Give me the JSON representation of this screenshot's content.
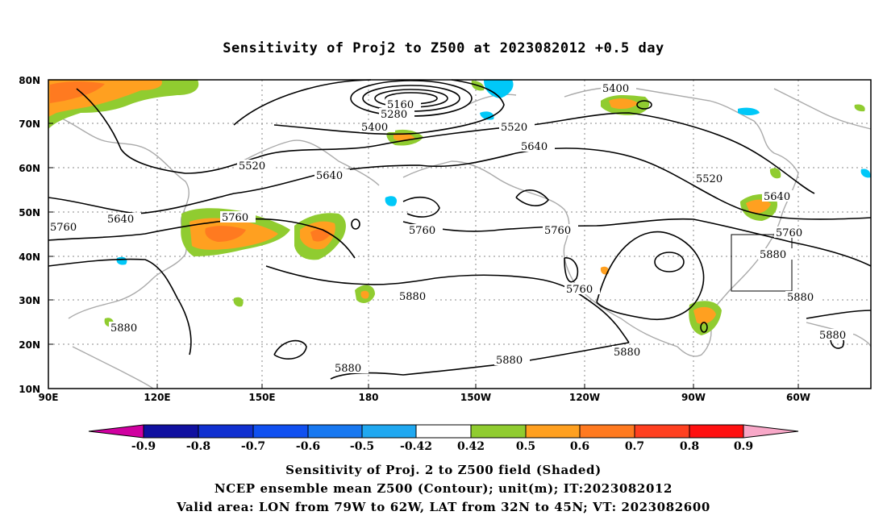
{
  "title": "Sensitivity of Proj2 to Z500 at 2023082012 +0.5 day",
  "lat_labels": [
    "80N",
    "70N",
    "60N",
    "50N",
    "40N",
    "30N",
    "20N",
    "10N"
  ],
  "lon_labels": [
    "90E",
    "120E",
    "150E",
    "180",
    "150W",
    "120W",
    "90W",
    "60W"
  ],
  "contour_labels": [
    "5160",
    "5280",
    "5400",
    "5400",
    "5520",
    "5520",
    "5520",
    "5640",
    "5640",
    "5640",
    "5640",
    "5760",
    "5760",
    "5760",
    "5760",
    "5760",
    "5760",
    "5880",
    "5880",
    "5880",
    "5880",
    "5880",
    "5880",
    "5880",
    "5880"
  ],
  "colorbar": {
    "labels": [
      "-0.9",
      "-0.8",
      "-0.7",
      "-0.6",
      "-0.5",
      "-0.42",
      "0.42",
      "0.5",
      "0.6",
      "0.7",
      "0.8",
      "0.9"
    ],
    "colors": [
      "#d000a0",
      "#1010a0",
      "#1030d0",
      "#1050f0",
      "#1878f0",
      "#20a8f0",
      "#00c8f8",
      "#ffffff",
      "#90cc30",
      "#ffa020",
      "#ff7a20",
      "#ff4020",
      "#ff1010",
      "#f8a8c8"
    ]
  },
  "footer": {
    "line1": "Sensitivity of Proj. 2 to Z500 field (Shaded)",
    "line2": "NCEP ensemble mean Z500 (Contour); unit(m); IT:2023082012",
    "line3": "Valid area: LON from 79W to 62W, LAT from 32N to 45N; VT: 2023082600"
  }
}
